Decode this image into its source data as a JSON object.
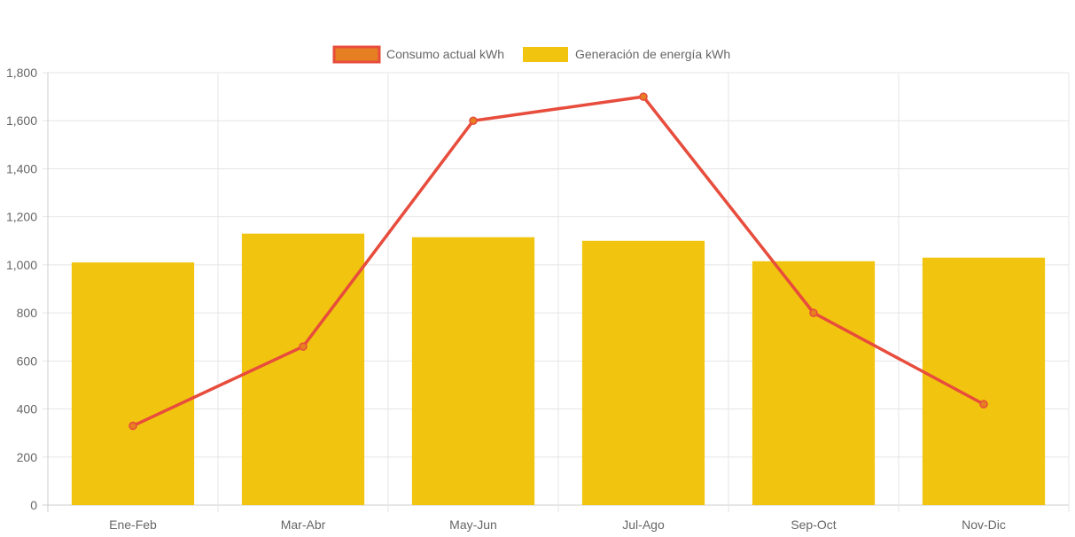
{
  "chart_data": {
    "type": "bar",
    "categories": [
      "Ene-Feb",
      "Mar-Abr",
      "May-Jun",
      "Jul-Ago",
      "Sep-Oct",
      "Nov-Dic"
    ],
    "series": [
      {
        "name": "Consumo actual kWh",
        "type": "line",
        "values": [
          330,
          660,
          1600,
          1700,
          800,
          420
        ],
        "color": "#e74c3c",
        "point_color": "#e67e22"
      },
      {
        "name": "Generación de energía kWh",
        "type": "bar",
        "values": [
          1010,
          1130,
          1115,
          1100,
          1015,
          1030
        ],
        "color": "#f1c40f"
      }
    ],
    "y_ticks": [
      "0",
      "200",
      "400",
      "600",
      "800",
      "1,000",
      "1,200",
      "1,400",
      "1,600",
      "1,800"
    ],
    "ylim": [
      0,
      1800
    ],
    "legend_position": "top-center",
    "grid": true,
    "title": "",
    "xlabel": "",
    "ylabel": ""
  }
}
